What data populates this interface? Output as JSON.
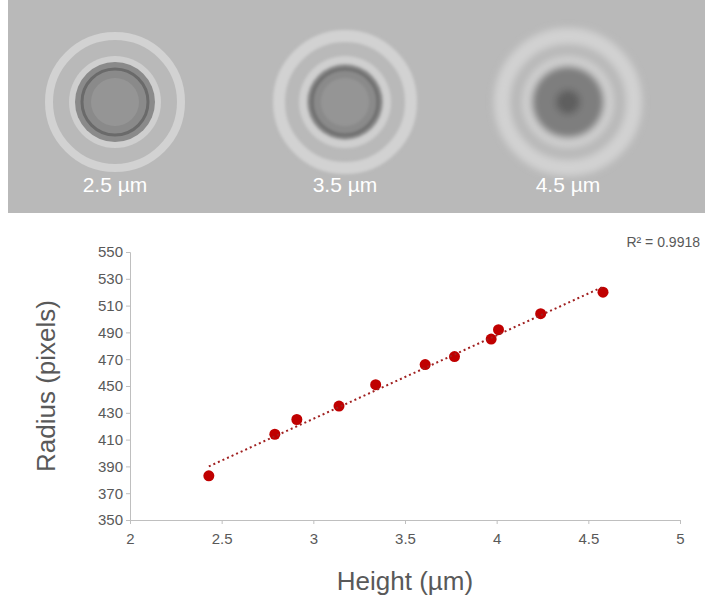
{
  "image_panel": {
    "labels": [
      "2.5 µm",
      "3.5 µm",
      "4.5 µm"
    ]
  },
  "chart_data": {
    "type": "scatter",
    "xlabel": "Height (µm)",
    "ylabel": "Radius (pixels)",
    "annotation": "R² = 0.9918",
    "xlim": [
      2,
      5
    ],
    "xticks": [
      2,
      2.5,
      3,
      3.5,
      4,
      4.5,
      5
    ],
    "ylim": [
      350,
      550
    ],
    "yticks": [
      350,
      370,
      390,
      410,
      430,
      450,
      470,
      490,
      510,
      530,
      550
    ],
    "grid": false,
    "series": [
      {
        "type": "scatter",
        "marker": "circle",
        "color": "#c00000",
        "x": [
          2.43,
          2.79,
          2.91,
          3.14,
          3.34,
          3.61,
          3.77,
          3.97,
          4.01,
          4.24,
          4.58
        ],
        "values": [
          383,
          414,
          425,
          435,
          451,
          466,
          472,
          485,
          492,
          504,
          520
        ]
      },
      {
        "type": "line",
        "line_style": "dotted",
        "color": "#a02020",
        "x": [
          2.43,
          4.58
        ],
        "values": [
          390,
          524
        ]
      }
    ]
  }
}
